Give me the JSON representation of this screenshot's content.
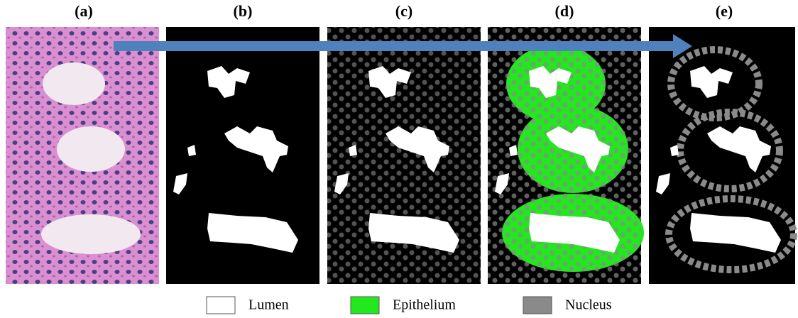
{
  "panels": [
    {
      "label": "(a)"
    },
    {
      "label": "(b)"
    },
    {
      "label": "(c)"
    },
    {
      "label": "(d)"
    },
    {
      "label": "(e)"
    }
  ],
  "legend": [
    {
      "label": "Lumen"
    },
    {
      "label": "Epithelium"
    },
    {
      "label": "Nucleus"
    }
  ]
}
